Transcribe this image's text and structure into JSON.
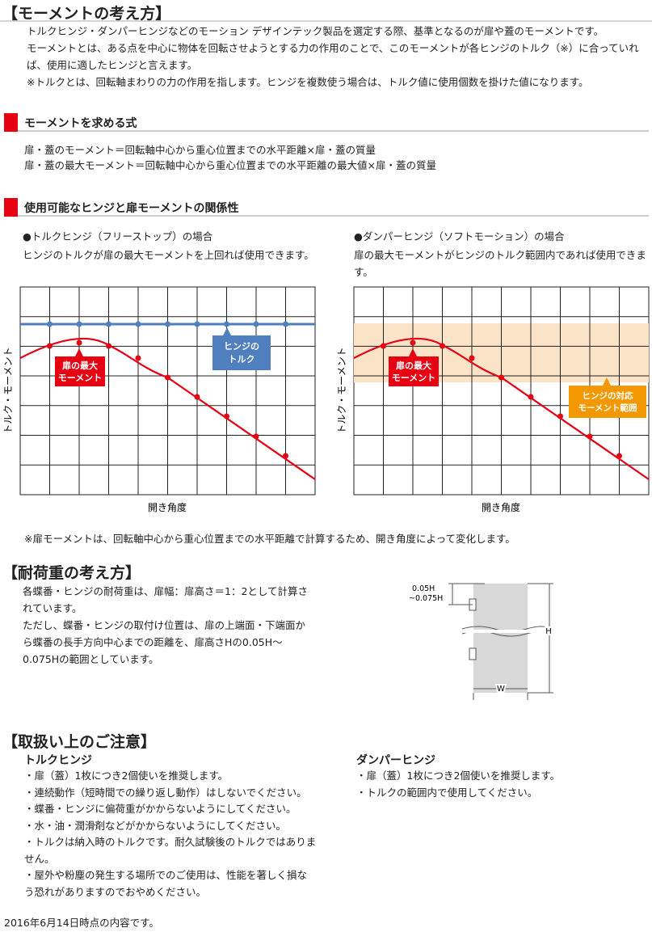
{
  "moment": {
    "title": "【モーメントの考え方】",
    "paragraphs": [
      "トルクヒンジ・ダンパーヒンジなどのモーション デザインテック製品を選定する際、基準となるのが扉や蓋のモーメントです。",
      "モーメントとは、ある点を中心に物体を回転させようとする力の作用のことで、このモーメントが各ヒンジのトルク（※）に合っていれば、使用に適したヒンジと言えます。",
      "※トルクとは、回転軸まわりの力の作用を指します。ヒンジを複数使う場合は、トルク値に使用個数を掛けた値になります。"
    ]
  },
  "formula": {
    "title": "モーメントを求める式",
    "lines": [
      "扉・蓋のモーメント＝回転軸中心から重心位置までの水平距離×扉・蓋の質量",
      "扉・蓋の最大モーメント＝回転軸中心から重心位置までの水平距離の最大値×扉・蓋の質量"
    ]
  },
  "relation": {
    "title": "使用可能なヒンジと扉モーメントの関係性",
    "left": {
      "heading": "●トルクヒンジ（フリーストップ）の場合",
      "description": "ヒンジのトルクが扉の最大モーメントを上回れば使用できます。",
      "y_label": "トルク・モーメント",
      "x_label": "開き角度",
      "door_callout": [
        "扉の最大",
        "モーメント"
      ],
      "hinge_callout": [
        "ヒンジの",
        "トルク"
      ]
    },
    "right": {
      "heading": "●ダンパーヒンジ（ソフトモーション）の場合",
      "description": "扉の最大モーメントがヒンジのトルク範囲内であれば使用できます。",
      "y_label": "トルク・モーメント",
      "x_label": "開き角度",
      "door_callout": [
        "扉の最大",
        "モーメント"
      ],
      "hinge_callout": [
        "ヒンジの対応",
        "モーメント範囲"
      ]
    },
    "note": "※扉モーメントは、回転軸中心から重心位置までの水平距離で計算するため、開き角度によって変化します。"
  },
  "load": {
    "title": "【耐荷重の考え方】",
    "paragraphs": [
      "各蝶番・ヒンジの耐荷重は、扉幅：扉高さ＝1：2として計算されています。",
      "ただし、蝶番・ヒンジの取付け位置は、扉の上端面・下端面から蝶番の長手方向中心までの距離を、扉高さHの0.05H～0.075Hの範囲としています。"
    ],
    "diagram": {
      "offset_top": "0.05H",
      "offset_bottom": "~0.075H",
      "height": "H",
      "width": "W"
    }
  },
  "cautions": {
    "title": "【取扱い上のご注意】",
    "torque": {
      "title": "トルクヒンジ",
      "items": [
        "・扉（蓋）1枚につき2個使いを推奨します。",
        "・連続動作（短時間での繰り返し動作）はしないでください。",
        "・蝶番・ヒンジに偏荷重がかからないようにしてください。",
        "・水・油・潤滑剤などがかからないようにしてください。",
        "・トルクは納入時のトルクです。耐久試験後のトルクではありません。",
        "・屋外や粉塵の発生する場所でのご使用は、性能を著しく損なう恐れがありますのでおやめください。"
      ]
    },
    "damper": {
      "title": "ダンパーヒンジ",
      "items": [
        "・扉（蓋）1枚につき2個使いを推奨します。",
        "・トルクの範囲内で使用してください。"
      ]
    }
  },
  "footer": "2016年6月14日時点の内容です。"
}
